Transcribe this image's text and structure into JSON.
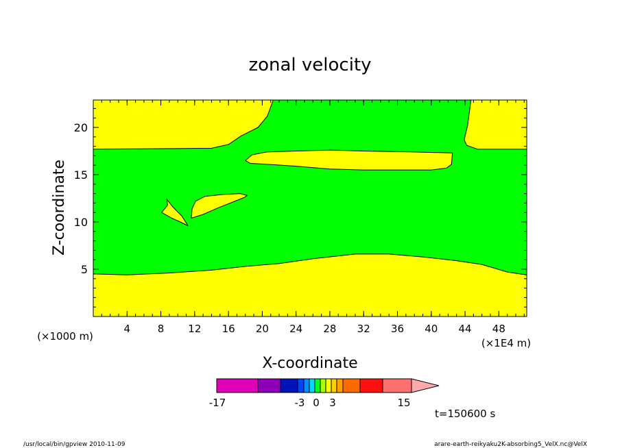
{
  "chart_data": {
    "type": "contour",
    "title": "zonal velocity",
    "xlabel": "X-coordinate",
    "ylabel": "Z-coordinate",
    "x_unit": "(×1E4 m)",
    "y_unit": "(×1000 m)",
    "xlim": [
      0,
      51.3
    ],
    "ylim": [
      0,
      22.9
    ],
    "xticks": [
      4,
      8,
      12,
      16,
      20,
      24,
      28,
      32,
      36,
      40,
      44,
      48
    ],
    "yticks": [
      5,
      10,
      15,
      20
    ],
    "background_color": "#00ff00",
    "regions": [
      {
        "name": "bottom-band",
        "color": "#ffff00",
        "points": [
          [
            0,
            0
          ],
          [
            51.3,
            0
          ],
          [
            51.3,
            4.4
          ],
          [
            49,
            4.7
          ],
          [
            46,
            5.5
          ],
          [
            43,
            5.9
          ],
          [
            39,
            6.3
          ],
          [
            35,
            6.6
          ],
          [
            31,
            6.6
          ],
          [
            26,
            6.1
          ],
          [
            22,
            5.6
          ],
          [
            18,
            5.3
          ],
          [
            14,
            4.9
          ],
          [
            9,
            4.6
          ],
          [
            4,
            4.4
          ],
          [
            0,
            4.5
          ]
        ]
      },
      {
        "name": "top-left-region",
        "color": "#ffff00",
        "points": [
          [
            0,
            22.9
          ],
          [
            21.3,
            22.9
          ],
          [
            20.6,
            21.2
          ],
          [
            19.5,
            20
          ],
          [
            17.5,
            19.1
          ],
          [
            16,
            18.2
          ],
          [
            14,
            17.8
          ],
          [
            0,
            17.7
          ]
        ]
      },
      {
        "name": "top-right-region",
        "color": "#ffff00",
        "points": [
          [
            44.7,
            22.9
          ],
          [
            51.3,
            22.9
          ],
          [
            51.3,
            17.7
          ],
          [
            45.5,
            17.7
          ],
          [
            44.2,
            18.1
          ],
          [
            43.9,
            18.7
          ],
          [
            44.3,
            20.2
          ]
        ]
      },
      {
        "name": "upper-elongated-blob",
        "color": "#ffff00",
        "points": [
          [
            18,
            16.5
          ],
          [
            18.8,
            17.1
          ],
          [
            20.5,
            17.4
          ],
          [
            24,
            17.5
          ],
          [
            28,
            17.6
          ],
          [
            32,
            17.5
          ],
          [
            38,
            17.4
          ],
          [
            42.5,
            17.3
          ],
          [
            42.4,
            16.1
          ],
          [
            41.8,
            15.7
          ],
          [
            40,
            15.5
          ],
          [
            32,
            15.5
          ],
          [
            28,
            15.6
          ],
          [
            24,
            15.9
          ],
          [
            20.5,
            16.1
          ],
          [
            18.6,
            16.2
          ]
        ]
      },
      {
        "name": "small-blob-right",
        "color": "#ffff00",
        "points": [
          [
            11.6,
            10.4
          ],
          [
            13,
            10.8
          ],
          [
            14.8,
            11.5
          ],
          [
            16.5,
            12.1
          ],
          [
            17.9,
            12.6
          ],
          [
            18.2,
            12.8
          ],
          [
            17.4,
            13
          ],
          [
            15.2,
            12.9
          ],
          [
            13.2,
            12.7
          ],
          [
            12.1,
            12.2
          ],
          [
            11.7,
            11.4
          ]
        ]
      },
      {
        "name": "small-blob-left",
        "color": "#ffff00",
        "points": [
          [
            8.1,
            11
          ],
          [
            8.8,
            11.8
          ],
          [
            8.7,
            12.4
          ],
          [
            9.4,
            11.6
          ],
          [
            10.5,
            10.6
          ],
          [
            11.2,
            9.6
          ],
          [
            10.3,
            10
          ],
          [
            9.3,
            10.4
          ]
        ]
      }
    ]
  },
  "colorbar": {
    "colors": [
      "#e000b8",
      "#8e00b8",
      "#0014b8",
      "#0044ff",
      "#0090ff",
      "#00d8ff",
      "#00ff20",
      "#aaff00",
      "#ffff00",
      "#ffd000",
      "#ffa000",
      "#ff6a00",
      "#ff1010",
      "#ff7070",
      "#ffaaaa"
    ],
    "labels": {
      "min": "-17",
      "neg": "-3",
      "zero": "0",
      "pos": "3",
      "max": "15"
    }
  },
  "annotations": {
    "time": "t=150600 s",
    "footer_left": "/usr/local/bin/gpview   2010-11-09",
    "footer_right": "arare-earth-reikyaku2K-absorbing5_VelX.nc@VelX"
  }
}
